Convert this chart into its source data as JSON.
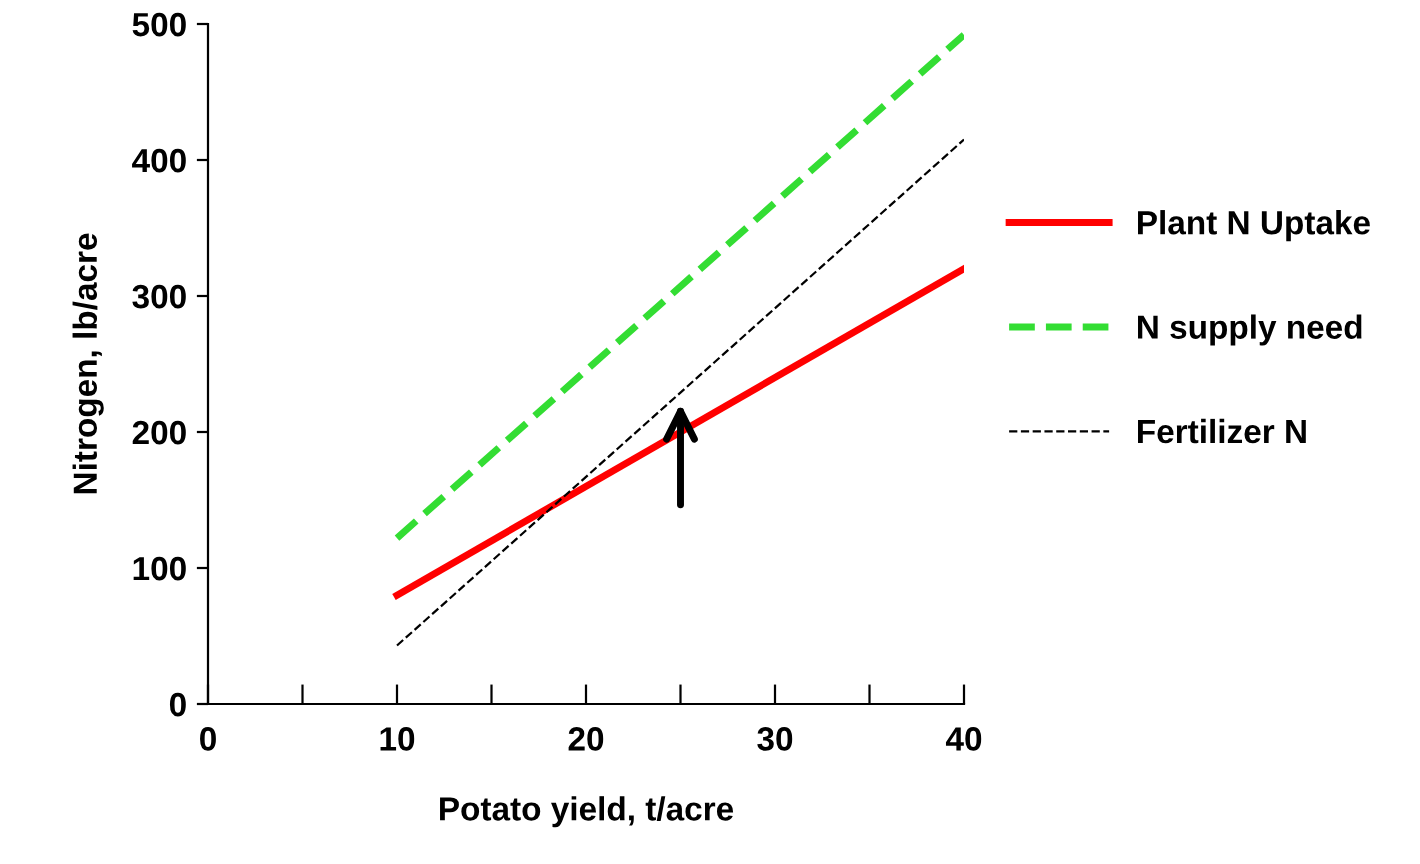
{
  "chart_data": {
    "type": "line",
    "xlabel": "Potato yield, t/acre",
    "ylabel": "Nitrogen, lb/acre",
    "x": [
      10,
      40
    ],
    "series": [
      {
        "name": "Plant N Uptake",
        "color": "#ff0000",
        "values": [
          80,
          320
        ],
        "line_style": "solid"
      },
      {
        "name": "N supply need",
        "color": "#33dd33",
        "values": [
          122,
          492
        ],
        "line_style": "dashed"
      },
      {
        "name": "Fertilizer N",
        "color": "#000000",
        "values": [
          43,
          415
        ],
        "line_style": "dashed"
      }
    ],
    "xlim": [
      0,
      40
    ],
    "ylim": [
      0,
      500
    ],
    "xticks": [
      0,
      {
        "value": 5,
        "label": null
      },
      10,
      {
        "value": 15,
        "label": null
      },
      20,
      {
        "value": 25,
        "label": null
      },
      30,
      {
        "value": 35,
        "label": null
      },
      40
    ],
    "yticks": [
      0,
      100,
      200,
      300,
      400,
      500
    ],
    "legend": "right",
    "grid": false,
    "marker": "none"
  }
}
